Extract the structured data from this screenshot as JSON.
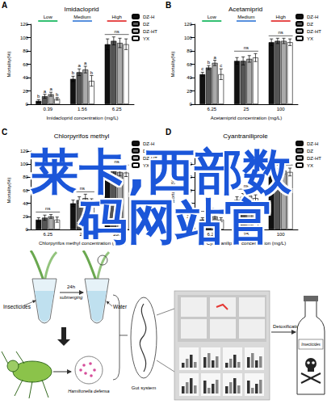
{
  "chart_data": [
    {
      "panel": "A",
      "type": "bar",
      "title": "Imidacloprid",
      "x_label": "Imidacloprid concentration (mg/L)",
      "y_label": "Mortality(%)",
      "categories": [
        "0.39",
        "1.56",
        "6.25"
      ],
      "ylim": [
        0,
        120
      ],
      "yticks": [
        0,
        20,
        40,
        60,
        80,
        100,
        120
      ],
      "grid": false,
      "legend": "upper right",
      "annotations": [
        {
          "text": "Low",
          "color": "#00b050"
        },
        {
          "text": "Medium",
          "color": "#2e75d6"
        },
        {
          "text": "High",
          "color": "#e02020"
        }
      ],
      "group_labels": [
        null,
        null,
        "ns"
      ],
      "series": [
        {
          "name": "DZ-H",
          "color": "#111111",
          "values": [
            5,
            38,
            90
          ],
          "errors": [
            2,
            4,
            8
          ],
          "letters": [
            "b",
            "b",
            null
          ]
        },
        {
          "name": "DZ",
          "color": "#555555",
          "values": [
            12,
            48,
            95
          ],
          "errors": [
            3,
            5,
            6
          ],
          "letters": [
            "a",
            "a",
            null
          ]
        },
        {
          "name": "DZ-HT",
          "color": "#aaaaaa",
          "values": [
            15,
            52,
            92
          ],
          "errors": [
            3,
            5,
            7
          ],
          "letters": [
            "a",
            "a",
            null
          ]
        },
        {
          "name": "YX",
          "color": "#ffffff",
          "values": [
            8,
            35,
            90
          ],
          "errors": [
            2,
            8,
            8
          ],
          "letters": [
            "b",
            "b",
            null
          ]
        }
      ]
    },
    {
      "panel": "B",
      "type": "bar",
      "title": "Acetamiprid",
      "x_label": "Acetamiprid concentration (mg/L)",
      "y_label": "Mortality(%)",
      "categories": [
        "6.25",
        "25",
        "100"
      ],
      "ylim": [
        0,
        120
      ],
      "yticks": [
        0,
        20,
        40,
        60,
        80,
        100,
        120
      ],
      "grid": false,
      "legend": "upper right",
      "annotations": [
        {
          "text": "Low",
          "color": "#00b050"
        },
        {
          "text": "Medium",
          "color": "#2e75d6"
        },
        {
          "text": "High",
          "color": "#e02020"
        }
      ],
      "group_labels": [
        null,
        "ns",
        "ns"
      ],
      "series": [
        {
          "name": "DZ-H",
          "color": "#111111",
          "values": [
            45,
            65,
            93
          ],
          "errors": [
            3,
            5,
            5
          ],
          "letters": [
            "c",
            null,
            null
          ]
        },
        {
          "name": "DZ",
          "color": "#555555",
          "values": [
            55,
            65,
            95
          ],
          "errors": [
            3,
            6,
            4
          ],
          "letters": [
            "b",
            null,
            null
          ]
        },
        {
          "name": "DZ-HT",
          "color": "#aaaaaa",
          "values": [
            62,
            68,
            95
          ],
          "errors": [
            4,
            5,
            4
          ],
          "letters": [
            "a",
            null,
            null
          ]
        },
        {
          "name": "YX",
          "color": "#ffffff",
          "values": [
            45,
            70,
            93
          ],
          "errors": [
            8,
            6,
            5
          ],
          "letters": [
            "c",
            null,
            null
          ]
        }
      ]
    },
    {
      "panel": "C",
      "type": "bar",
      "title": "Chlorpyrifos methyl",
      "x_label": "Chlorpyrifos methyl concentration (mg/L)",
      "y_label": "Mortality(%)",
      "categories": [
        "6.25",
        "25",
        "100"
      ],
      "ylim": [
        0,
        120
      ],
      "yticks": [
        0,
        20,
        40,
        60,
        80,
        100,
        120
      ],
      "grid": false,
      "legend": "upper right",
      "group_labels": [
        "ns",
        "ns",
        "ns"
      ],
      "series": [
        {
          "name": "DZ-H",
          "color": "#111111",
          "values": [
            15,
            40,
            85
          ],
          "errors": [
            3,
            5,
            6
          ]
        },
        {
          "name": "DZ",
          "color": "#555555",
          "values": [
            18,
            45,
            90
          ],
          "errors": [
            4,
            5,
            5
          ]
        },
        {
          "name": "DZ-HT",
          "color": "#aaaaaa",
          "values": [
            20,
            48,
            88
          ],
          "errors": [
            3,
            6,
            6
          ]
        },
        {
          "name": "YX",
          "color": "#ffffff",
          "values": [
            15,
            42,
            87
          ],
          "errors": [
            4,
            5,
            6
          ]
        }
      ]
    },
    {
      "panel": "D",
      "type": "bar",
      "title": "Cyantraniliprole",
      "x_label": "Cyantraniliprole concentration (mg/L)",
      "y_label": "Mortality(%)",
      "categories": [
        "6.25",
        "25",
        "100"
      ],
      "ylim": [
        0,
        120
      ],
      "yticks": [
        0,
        20,
        40,
        60,
        80,
        100,
        120
      ],
      "grid": false,
      "legend": "upper right",
      "group_labels": [
        "ns",
        "ns",
        "ns"
      ],
      "series": [
        {
          "name": "DZ-H",
          "color": "#111111",
          "values": [
            15,
            45,
            85
          ],
          "errors": [
            3,
            5,
            6
          ]
        },
        {
          "name": "DZ",
          "color": "#555555",
          "values": [
            18,
            50,
            88
          ],
          "errors": [
            3,
            5,
            5
          ]
        },
        {
          "name": "DZ-HT",
          "color": "#aaaaaa",
          "values": [
            20,
            52,
            90
          ],
          "errors": [
            4,
            6,
            5
          ]
        },
        {
          "name": "YX",
          "color": "#ffffff",
          "values": [
            15,
            48,
            88
          ],
          "errors": [
            3,
            5,
            6
          ]
        }
      ]
    }
  ],
  "watermark": [
    "莱卡,西部数",
    "码网站官"
  ],
  "diagram": {
    "labels": {
      "insecticides": "Insecticides",
      "time": "24h",
      "process": "submerging",
      "water": "Water",
      "symbiont": "Hamiltonella defensa",
      "gut": "Gut system",
      "detox": "Detoxification",
      "bottle": "Insecticides"
    }
  }
}
